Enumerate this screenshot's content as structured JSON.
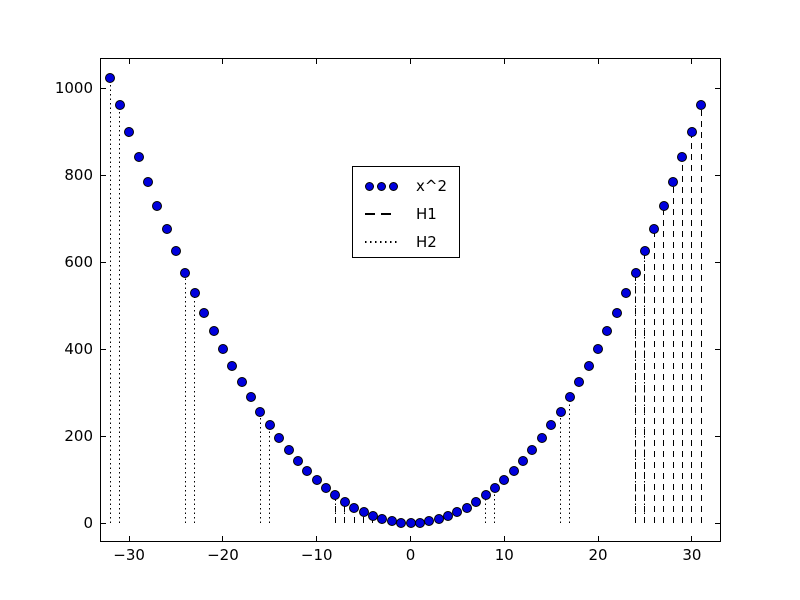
{
  "chart_data": {
    "type": "scatter",
    "title": "",
    "xlabel": "",
    "ylabel": "",
    "xlim": [
      -33,
      33
    ],
    "ylim": [
      -41,
      1067
    ],
    "grid": false,
    "background": "#ffffff",
    "axes": {
      "spine_color": "#000000",
      "tick_direction": "in",
      "xticks": {
        "values": [
          -30,
          -20,
          -10,
          0,
          10,
          20,
          30
        ],
        "labels": [
          "−30",
          "−20",
          "−10",
          "0",
          "10",
          "20",
          "30"
        ]
      },
      "yticks": {
        "values": [
          0,
          200,
          400,
          600,
          800,
          1000
        ],
        "labels": [
          "0",
          "200",
          "400",
          "600",
          "800",
          "1000"
        ]
      }
    },
    "legend": {
      "position": "upper-left-of-center",
      "border_color": "#000000",
      "background": "#ffffff",
      "entries": [
        {
          "label": "x^2",
          "sample": "marker-dots",
          "color": "#0000dd"
        },
        {
          "label": "H1",
          "sample": "dashed-line",
          "color": "#000000"
        },
        {
          "label": "H2",
          "sample": "dotted-line",
          "color": "#000000"
        }
      ]
    },
    "series": [
      {
        "name": "x^2",
        "plot_type": "scatter",
        "marker": "filled-circle",
        "marker_color": "#0000dd",
        "marker_edge_color": "#000000",
        "x": [
          -32,
          -31,
          -30,
          -29,
          -28,
          -27,
          -26,
          -25,
          -24,
          -23,
          -22,
          -21,
          -20,
          -19,
          -18,
          -17,
          -16,
          -15,
          -14,
          -13,
          -12,
          -11,
          -10,
          -9,
          -8,
          -7,
          -6,
          -5,
          -4,
          -3,
          -2,
          -1,
          0,
          1,
          2,
          3,
          4,
          5,
          6,
          7,
          8,
          9,
          10,
          11,
          12,
          13,
          14,
          15,
          16,
          17,
          18,
          19,
          20,
          21,
          22,
          23,
          24,
          25,
          26,
          27,
          28,
          29,
          30,
          31
        ],
        "y": [
          1024,
          961,
          900,
          841,
          784,
          729,
          676,
          625,
          576,
          529,
          484,
          441,
          400,
          361,
          324,
          289,
          256,
          225,
          196,
          169,
          144,
          121,
          100,
          81,
          64,
          49,
          36,
          25,
          16,
          9,
          4,
          1,
          0,
          1,
          4,
          9,
          16,
          25,
          36,
          49,
          64,
          81,
          100,
          121,
          144,
          169,
          196,
          225,
          256,
          289,
          324,
          361,
          400,
          441,
          484,
          529,
          576,
          625,
          676,
          729,
          784,
          841,
          900,
          961
        ]
      },
      {
        "name": "H1",
        "plot_type": "vlines",
        "linestyle": "dashed",
        "color": "#000000",
        "ymin": 0,
        "lines": [
          [
            -8,
            64
          ],
          [
            -7,
            49
          ],
          [
            -6,
            36
          ],
          [
            -5,
            25
          ],
          [
            -4,
            16
          ],
          [
            -3,
            9
          ],
          [
            -2,
            4
          ],
          [
            -1,
            1
          ],
          [
            24,
            576
          ],
          [
            25,
            625
          ],
          [
            26,
            676
          ],
          [
            27,
            729
          ],
          [
            28,
            784
          ],
          [
            29,
            841
          ],
          [
            30,
            900
          ],
          [
            31,
            961
          ]
        ]
      },
      {
        "name": "H2",
        "plot_type": "vlines",
        "linestyle": "dotted",
        "color": "#000000",
        "ymin": 0,
        "lines": [
          [
            -32,
            1024
          ],
          [
            -31,
            961
          ],
          [
            -24,
            576
          ],
          [
            -23,
            529
          ],
          [
            -16,
            256
          ],
          [
            -15,
            225
          ],
          [
            -8,
            64
          ],
          [
            -7,
            49
          ],
          [
            0,
            0
          ],
          [
            1,
            1
          ],
          [
            8,
            64
          ],
          [
            9,
            81
          ],
          [
            16,
            256
          ],
          [
            17,
            289
          ],
          [
            24,
            576
          ],
          [
            25,
            625
          ]
        ]
      }
    ]
  }
}
